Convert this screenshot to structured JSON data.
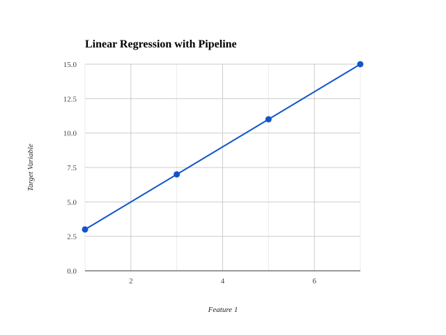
{
  "chart_data": {
    "type": "line",
    "title": "Linear Regression with Pipeline",
    "xlabel": "Feature 1",
    "ylabel": "Target Variable",
    "xlim": [
      1,
      7
    ],
    "ylim": [
      0,
      15
    ],
    "x_ticks": [
      2,
      4,
      6
    ],
    "x_minor_ticks": [
      1,
      3,
      5,
      7
    ],
    "x_tick_labels": [
      "2",
      "4",
      "6"
    ],
    "y_ticks": [
      0,
      2.5,
      5,
      7.5,
      10,
      12.5,
      15
    ],
    "y_tick_labels": [
      "0.0",
      "2.5",
      "5.0",
      "7.5",
      "10.0",
      "12.5",
      "15.0"
    ],
    "grid": true,
    "legend": false,
    "series": [
      {
        "color": "#1155cc",
        "line": {
          "x": [
            1,
            7
          ],
          "y": [
            3,
            15
          ]
        },
        "points": {
          "x": [
            1,
            3,
            5,
            7
          ],
          "y": [
            3,
            7,
            11,
            15
          ]
        }
      }
    ]
  }
}
